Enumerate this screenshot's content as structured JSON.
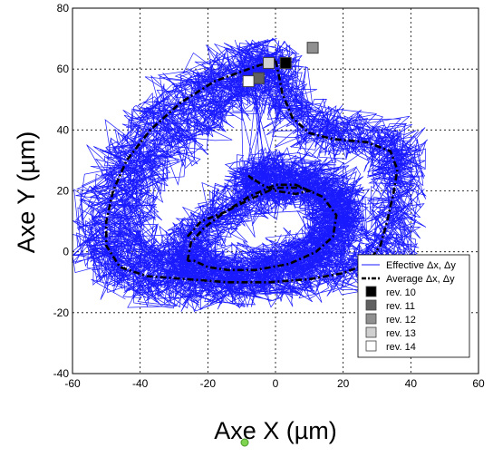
{
  "chart_data": {
    "type": "line",
    "title": "",
    "xlabel": "Axe X (µm)",
    "ylabel": "Axe Y (µm)",
    "xlim": [
      -60,
      60
    ],
    "ylim": [
      -40,
      80
    ],
    "xticks": [
      -60,
      -40,
      -20,
      0,
      20,
      40,
      60
    ],
    "yticks": [
      -40,
      -20,
      0,
      20,
      40,
      60,
      80
    ],
    "grid": true,
    "grid_style": "dotted",
    "legend_position": "bottom-right",
    "colors": {
      "effective": "#1a1aff",
      "average": "#000000",
      "marker_edge": "#404040"
    },
    "series": [
      {
        "name": "Effective Δx, Δy",
        "style": "solid-noisy",
        "color": "#1a1aff",
        "path": [
          [
            -3,
            62
          ],
          [
            -12,
            60
          ],
          [
            -22,
            55
          ],
          [
            -32,
            48
          ],
          [
            -40,
            40
          ],
          [
            -46,
            30
          ],
          [
            -50,
            18
          ],
          [
            -52,
            6
          ],
          [
            -51,
            -3
          ],
          [
            -45,
            -8
          ],
          [
            -35,
            -10
          ],
          [
            -22,
            -11
          ],
          [
            -8,
            -10
          ],
          [
            4,
            -9
          ],
          [
            16,
            -7
          ],
          [
            26,
            -4
          ],
          [
            32,
            0
          ],
          [
            35,
            10
          ],
          [
            36,
            20
          ],
          [
            36,
            28
          ],
          [
            36,
            33
          ],
          [
            30,
            37
          ],
          [
            20,
            38
          ],
          [
            12,
            40
          ],
          [
            6,
            45
          ],
          [
            2,
            52
          ],
          [
            0,
            60
          ],
          [
            -3,
            62
          ],
          [
            -8,
            56
          ],
          [
            -14,
            50
          ],
          [
            -22,
            44
          ],
          [
            -30,
            37
          ],
          [
            -38,
            28
          ],
          [
            -42,
            18
          ],
          [
            -43,
            8
          ],
          [
            -40,
            0
          ],
          [
            -32,
            -4
          ],
          [
            -22,
            -6
          ],
          [
            -10,
            -6
          ],
          [
            2,
            -5
          ],
          [
            12,
            -3
          ],
          [
            18,
            2
          ],
          [
            20,
            10
          ],
          [
            18,
            18
          ],
          [
            12,
            22
          ],
          [
            4,
            22
          ],
          [
            -4,
            20
          ],
          [
            -10,
            16
          ],
          [
            -16,
            12
          ],
          [
            -22,
            8
          ],
          [
            -26,
            2
          ],
          [
            -26,
            -4
          ],
          [
            -20,
            -8
          ],
          [
            -10,
            -8
          ],
          [
            0,
            -5
          ],
          [
            8,
            -1
          ],
          [
            14,
            4
          ],
          [
            18,
            10
          ],
          [
            18,
            16
          ],
          [
            14,
            21
          ],
          [
            6,
            24
          ],
          [
            -2,
            26
          ],
          [
            -8,
            24
          ],
          [
            -6,
            20
          ]
        ]
      },
      {
        "name": "Average Δx, Δy",
        "style": "dash-dot",
        "color": "#000000",
        "path": [
          [
            0,
            63
          ],
          [
            -8,
            60
          ],
          [
            -18,
            56
          ],
          [
            -28,
            49
          ],
          [
            -37,
            40
          ],
          [
            -44,
            30
          ],
          [
            -48,
            20
          ],
          [
            -50,
            10
          ],
          [
            -50,
            2
          ],
          [
            -46,
            -5
          ],
          [
            -38,
            -8
          ],
          [
            -26,
            -9
          ],
          [
            -14,
            -10
          ],
          [
            -2,
            -10
          ],
          [
            10,
            -9
          ],
          [
            20,
            -7
          ],
          [
            27,
            -4
          ],
          [
            31,
            2
          ],
          [
            33,
            10
          ],
          [
            35,
            20
          ],
          [
            36,
            27
          ],
          [
            34,
            33
          ],
          [
            27,
            36
          ],
          [
            17,
            37
          ],
          [
            10,
            39
          ],
          [
            5,
            44
          ],
          [
            2,
            52
          ],
          [
            1,
            58
          ],
          [
            0,
            63
          ]
        ]
      },
      {
        "name": "Average Δx, Δy",
        "style": "dash-dot",
        "color": "#000000",
        "path": [
          [
            -26,
            -3
          ],
          [
            -25,
            3
          ],
          [
            -21,
            8
          ],
          [
            -15,
            13
          ],
          [
            -8,
            17
          ],
          [
            0,
            21
          ],
          [
            8,
            21
          ],
          [
            14,
            18
          ],
          [
            18,
            12
          ],
          [
            17,
            5
          ],
          [
            12,
            0
          ],
          [
            4,
            -4
          ],
          [
            -6,
            -6
          ],
          [
            -14,
            -6
          ],
          [
            -20,
            -5
          ],
          [
            -24,
            -3
          ],
          [
            -26,
            -3
          ]
        ]
      },
      {
        "name": "Average Δx, Δy",
        "style": "dash-dot",
        "color": "#000000",
        "path": [
          [
            -26,
            5
          ],
          [
            -22,
            10
          ],
          [
            -15,
            13
          ],
          [
            -8,
            18
          ],
          [
            0,
            22
          ],
          [
            6,
            22
          ],
          [
            10,
            20
          ],
          [
            6,
            19
          ],
          [
            0,
            20
          ],
          [
            -4,
            22
          ],
          [
            -8,
            25
          ],
          [
            -6,
            23
          ]
        ]
      }
    ],
    "markers": [
      {
        "label": "rev. 10",
        "x": 3,
        "y": 62,
        "fill": "#000000"
      },
      {
        "label": "rev. 11",
        "x": -5,
        "y": 57,
        "fill": "#606060"
      },
      {
        "label": "rev. 12",
        "x": 11,
        "y": 67,
        "fill": "#909090"
      },
      {
        "label": "rev. 13",
        "x": -2,
        "y": 62,
        "fill": "#d0d0d0"
      },
      {
        "label": "rev. 14",
        "x": -8,
        "y": 56,
        "fill": "#ffffff"
      }
    ],
    "legend": [
      {
        "label": "Effective Δx, Δy",
        "kind": "line",
        "color": "#1a1aff"
      },
      {
        "label": "Average Δx, Δy",
        "kind": "dashdot",
        "color": "#000000"
      },
      {
        "label": "rev. 10",
        "kind": "square",
        "fill": "#000000"
      },
      {
        "label": "rev. 11",
        "kind": "square",
        "fill": "#606060"
      },
      {
        "label": "rev. 12",
        "kind": "square",
        "fill": "#909090"
      },
      {
        "label": "rev. 13",
        "kind": "square",
        "fill": "#d0d0d0"
      },
      {
        "label": "rev. 14",
        "kind": "square",
        "fill": "#ffffff"
      }
    ]
  }
}
